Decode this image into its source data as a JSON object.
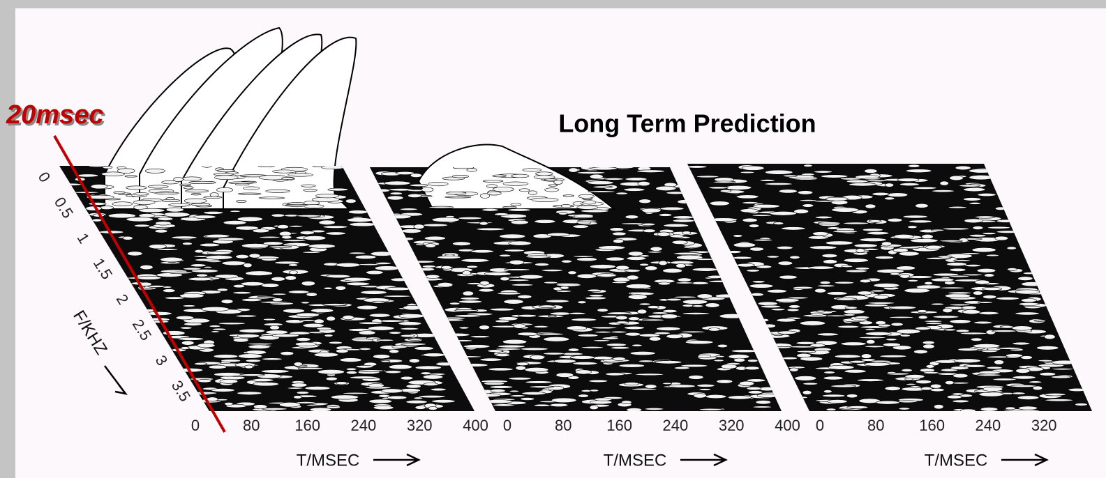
{
  "annotation": "20msec",
  "title": "Long Term Prediction",
  "panels": [
    {
      "f_axis": {
        "label": "F/KHZ",
        "ticks": [
          "0",
          "0.5",
          "1",
          "1.5",
          "2",
          "2.5",
          "3",
          "3.5"
        ]
      },
      "t_axis": {
        "label": "T/MSEC",
        "ticks": [
          "0",
          "80",
          "160",
          "240",
          "320",
          "400"
        ]
      }
    },
    {
      "t_axis": {
        "label": "T/MSEC",
        "ticks": [
          "0",
          "80",
          "160",
          "240",
          "320",
          "400"
        ]
      }
    },
    {
      "t_axis": {
        "label": "T/MSEC",
        "ticks": [
          "0",
          "80",
          "160",
          "240",
          "320"
        ]
      }
    }
  ]
}
